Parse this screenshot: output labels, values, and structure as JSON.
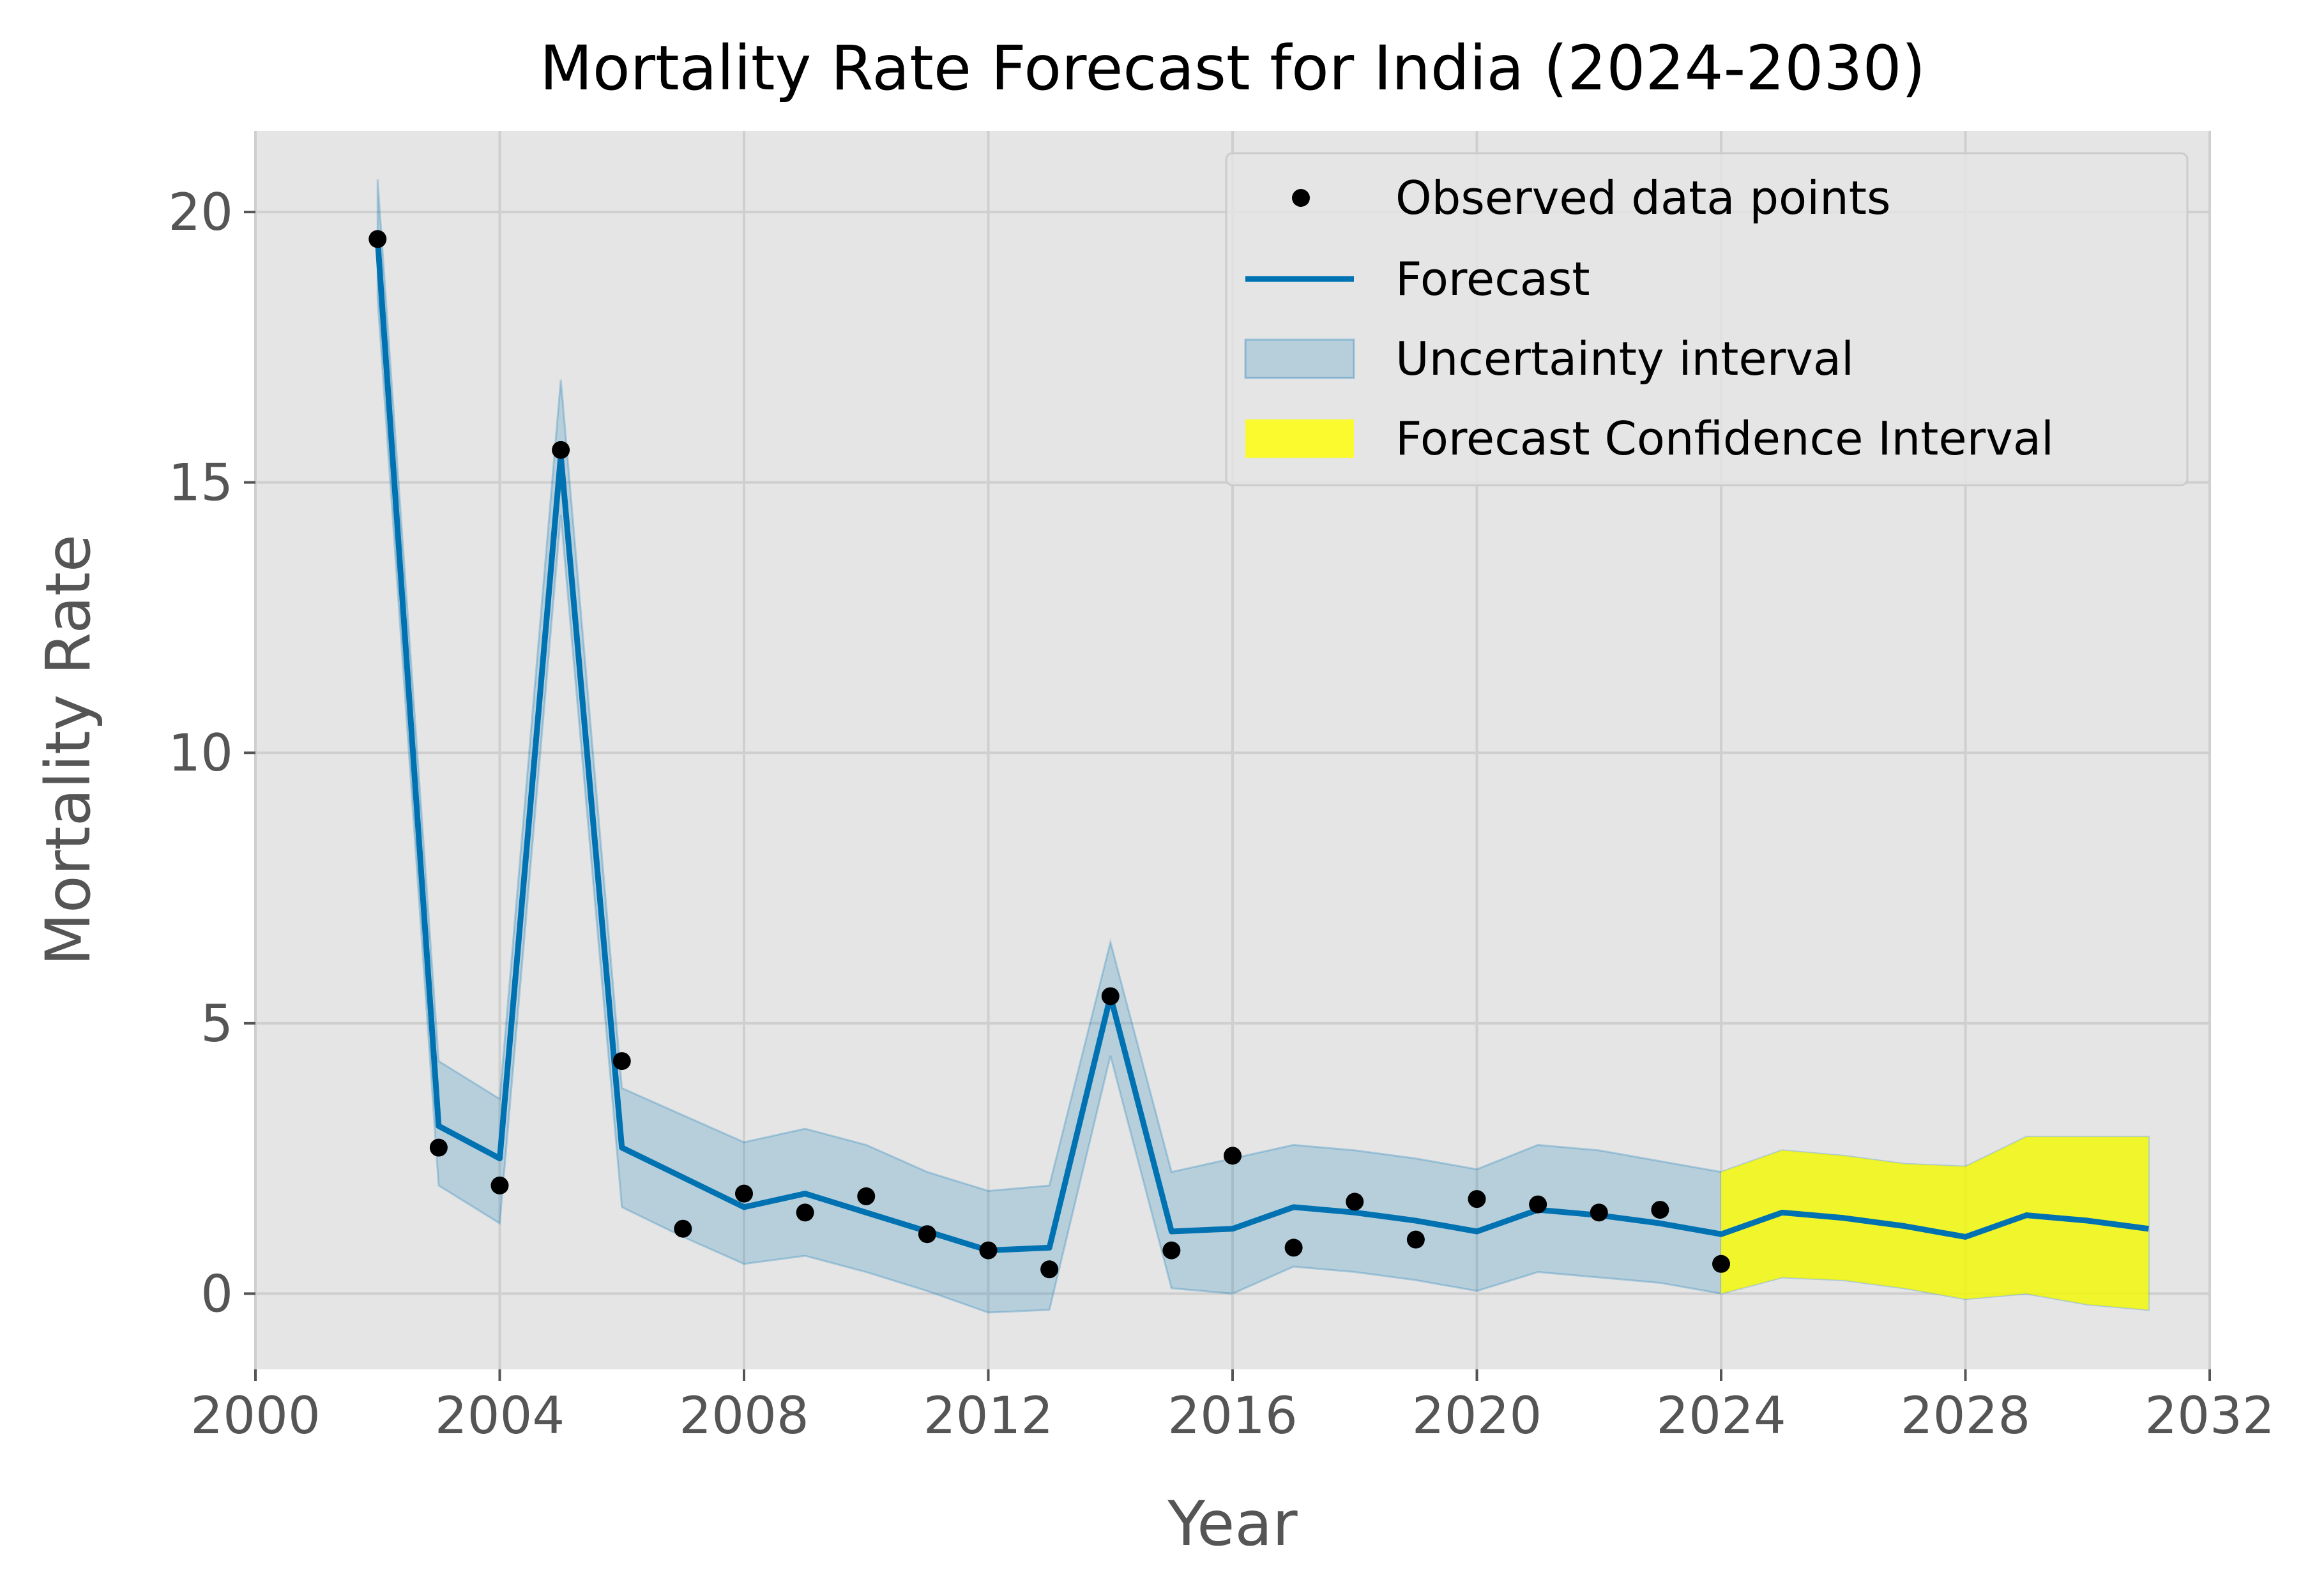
{
  "chart_data": {
    "type": "line",
    "title": "Mortality Rate Forecast for India (2024-2030)",
    "xlabel": "Year",
    "ylabel": "Mortality Rate",
    "xlim": [
      2000,
      2032
    ],
    "ylim": [
      -1.4,
      21.5
    ],
    "xticks": [
      2000,
      2004,
      2008,
      2012,
      2016,
      2020,
      2024,
      2028,
      2032
    ],
    "yticks": [
      0,
      5,
      10,
      15,
      20
    ],
    "grid": true,
    "legend_position": "top-right",
    "legend": [
      {
        "label": "Observed data points",
        "kind": "marker",
        "color": "#000000"
      },
      {
        "label": "Forecast",
        "kind": "line",
        "color": "#0072B2"
      },
      {
        "label": "Uncertainty interval",
        "kind": "patch",
        "color": "#0072B2"
      },
      {
        "label": "Forecast Confidence Interval",
        "kind": "patch",
        "color": "#FFFF00"
      }
    ],
    "observed": {
      "x": [
        2002,
        2003,
        2004,
        2005,
        2006,
        2007,
        2008,
        2009,
        2010,
        2011,
        2012,
        2013,
        2014,
        2015,
        2016,
        2017,
        2018,
        2019,
        2020,
        2021,
        2022,
        2023,
        2024
      ],
      "y": [
        19.5,
        2.7,
        2.0,
        15.6,
        4.3,
        1.2,
        1.85,
        1.5,
        1.8,
        1.1,
        0.8,
        0.45,
        5.5,
        0.8,
        2.55,
        0.85,
        1.7,
        1.0,
        1.75,
        1.65,
        1.5,
        1.55,
        0.55
      ]
    },
    "forecast": {
      "x": [
        2002,
        2003,
        2004,
        2005,
        2006,
        2007,
        2008,
        2009,
        2010,
        2011,
        2012,
        2013,
        2014,
        2015,
        2016,
        2017,
        2018,
        2019,
        2020,
        2021,
        2022,
        2023,
        2024,
        2025,
        2026,
        2027,
        2028,
        2029,
        2030,
        2031
      ],
      "y": [
        19.5,
        3.1,
        2.5,
        15.5,
        2.7,
        2.15,
        1.6,
        1.85,
        1.5,
        1.15,
        0.8,
        0.85,
        5.5,
        1.15,
        1.2,
        1.6,
        1.5,
        1.35,
        1.15,
        1.55,
        1.45,
        1.3,
        1.1,
        1.5,
        1.4,
        1.25,
        1.05,
        1.45,
        1.35,
        1.2
      ],
      "lower": [
        18.4,
        2.0,
        1.3,
        14.4,
        1.6,
        1.05,
        0.55,
        0.7,
        0.4,
        0.05,
        -0.35,
        -0.3,
        4.4,
        0.1,
        0.0,
        0.5,
        0.4,
        0.25,
        0.05,
        0.4,
        0.3,
        0.2,
        0.0,
        0.3,
        0.25,
        0.1,
        -0.1,
        0.0,
        -0.2,
        -0.3
      ],
      "upper": [
        20.6,
        4.3,
        3.6,
        16.9,
        3.8,
        3.3,
        2.8,
        3.05,
        2.75,
        2.25,
        1.9,
        2.0,
        6.5,
        2.25,
        2.5,
        2.75,
        2.65,
        2.5,
        2.3,
        2.75,
        2.65,
        2.45,
        2.25,
        2.65,
        2.55,
        2.4,
        2.35,
        2.9,
        2.9,
        2.9
      ]
    },
    "forecast_interval": {
      "x": [
        2024,
        2025,
        2026,
        2027,
        2028,
        2029,
        2030,
        2031
      ],
      "lower": [
        0.0,
        0.3,
        0.25,
        0.1,
        -0.1,
        0.0,
        -0.2,
        -0.3
      ],
      "upper": [
        2.25,
        2.65,
        2.55,
        2.4,
        2.35,
        2.9,
        2.9,
        2.9
      ]
    }
  },
  "colors": {
    "plot_background": "#E5E5E5",
    "grid": "#CFCFCF",
    "forecast_line": "#0072B2",
    "uncertainty_fill": "#0072B2",
    "forecast_interval_fill": "#FFFF00",
    "observed_marker": "#000000"
  }
}
